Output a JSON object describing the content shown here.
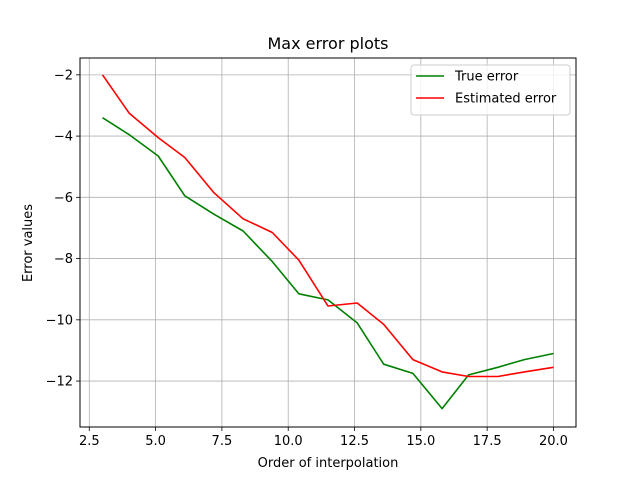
{
  "chart_data": {
    "type": "line",
    "title": "Max error plots",
    "xlabel": "Order of interpolation",
    "ylabel": "Error values",
    "xlim": [
      2.15,
      20.85
    ],
    "ylim": [
      -13.5,
      -1.45
    ],
    "xticks": [
      2.5,
      5.0,
      7.5,
      10.0,
      12.5,
      15.0,
      17.5,
      20.0
    ],
    "xtick_labels": [
      "2.5",
      "5.0",
      "7.5",
      "10.0",
      "12.5",
      "15.0",
      "17.5",
      "20.0"
    ],
    "yticks": [
      -12,
      -10,
      -8,
      -6,
      -4,
      -2
    ],
    "ytick_labels": [
      "−12",
      "−10",
      "−8",
      "−6",
      "−4",
      "−2"
    ],
    "grid": true,
    "legend_position": "top-right",
    "x": [
      3.0,
      4.0,
      5.1,
      6.1,
      7.2,
      8.3,
      9.4,
      10.4,
      11.5,
      12.6,
      13.6,
      14.7,
      15.8,
      16.8,
      17.9,
      18.9,
      20.0
    ],
    "series": [
      {
        "name": "True error",
        "color": "#008000",
        "values": [
          -3.4,
          -3.95,
          -4.65,
          -5.95,
          -6.55,
          -7.1,
          -8.1,
          -9.15,
          -9.35,
          -10.1,
          -11.45,
          -11.75,
          -12.9,
          -11.8,
          -11.55,
          -11.3,
          -11.1
        ]
      },
      {
        "name": "Estimated error",
        "color": "#ff0000",
        "values": [
          -2.0,
          -3.25,
          -4.05,
          -4.7,
          -5.85,
          -6.7,
          -7.15,
          -8.05,
          -9.55,
          -9.45,
          -10.15,
          -11.3,
          -11.7,
          -11.85,
          -11.85,
          -11.7,
          -11.55
        ]
      }
    ]
  }
}
